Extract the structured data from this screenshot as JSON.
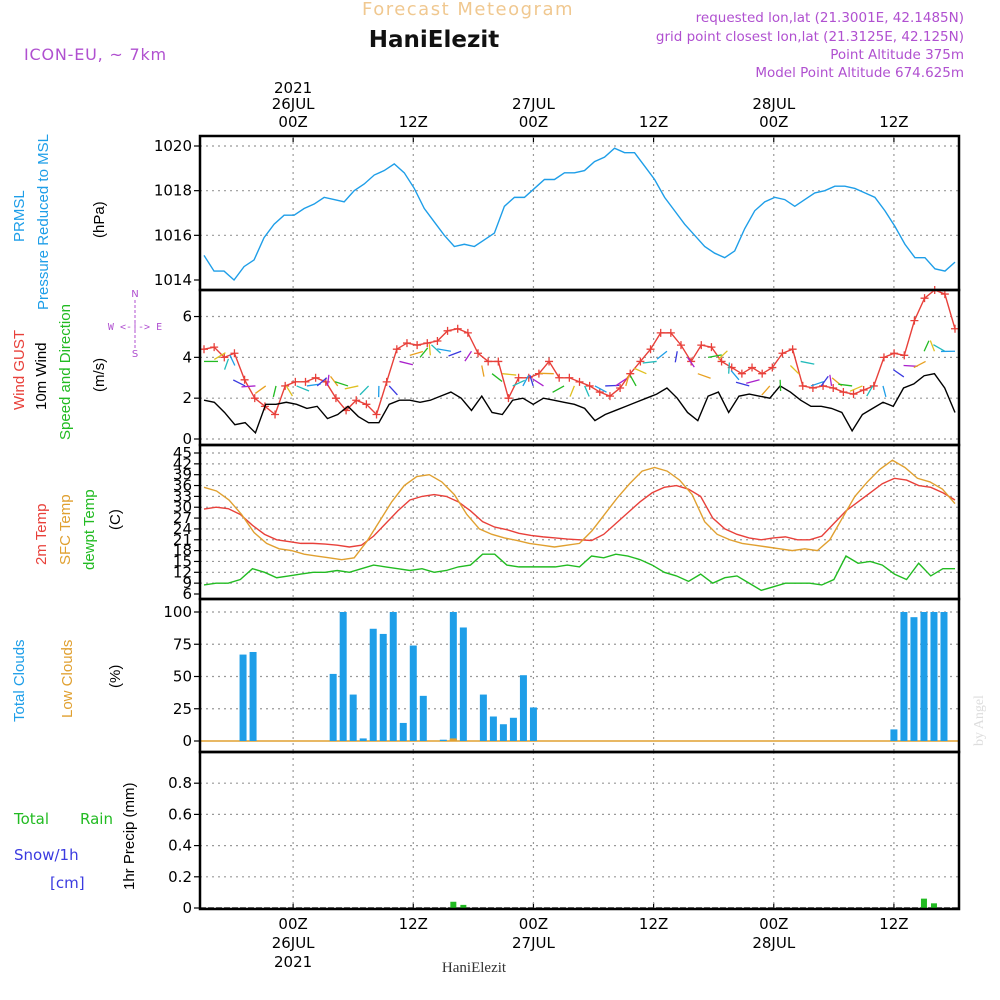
{
  "header": {
    "title_faint": "Forecast Meteogram",
    "station": "HaniElezit",
    "model": "ICON-EU, ~ 7km",
    "requested": "requested lon,lat (21.3001E, 42.1485N)",
    "grid_point": "grid point closest lon,lat (21.3125E, 42.125N)",
    "point_alt": "Point Altitude 375m",
    "model_alt": "Model Point Altitude 674.625m",
    "watermark": "by Angel",
    "footer": "HaniElezit"
  },
  "colors": {
    "pressure": "#1e9ee8",
    "gust": "#e8403a",
    "wind": "#000000",
    "temp": "#e8403a",
    "sfc": "#e0a030",
    "dewpt": "#22bb22",
    "clouds": "#1e9ee8",
    "lowclouds": "#e0a030",
    "rain": "#22bb22",
    "snow": "#3a3ae0",
    "header_violet": "#b050d0",
    "header_faint": "#f0c890"
  },
  "top_axis": [
    {
      "line1": "2021",
      "line2": "26JUL",
      "line3": "00Z",
      "h": 9
    },
    {
      "line1": "",
      "line2": "",
      "line3": "12Z",
      "h": 21
    },
    {
      "line1": "",
      "line2": "27JUL",
      "line3": "00Z",
      "h": 33
    },
    {
      "line1": "",
      "line2": "",
      "line3": "12Z",
      "h": 45
    },
    {
      "line1": "",
      "line2": "28JUL",
      "line3": "00Z",
      "h": 57
    },
    {
      "line1": "",
      "line2": "",
      "line3": "12Z",
      "h": 69
    }
  ],
  "bottom_axis": [
    {
      "line1": "00Z",
      "line2": "26JUL",
      "line3": "2021",
      "h": 9
    },
    {
      "line1": "12Z",
      "line2": "",
      "line3": "",
      "h": 21
    },
    {
      "line1": "00Z",
      "line2": "27JUL",
      "line3": "",
      "h": 33
    },
    {
      "line1": "12Z",
      "line2": "",
      "line3": "",
      "h": 45
    },
    {
      "line1": "00Z",
      "line2": "28JUL",
      "line3": "",
      "h": 57
    },
    {
      "line1": "12Z",
      "line2": "",
      "line3": "",
      "h": 69
    }
  ],
  "panel_labels": {
    "pressure": {
      "l1": "PRMSL",
      "l2": "Pressure Reduced to MSL",
      "unit": "(hPa)"
    },
    "wind": {
      "l1": "Wind GUST",
      "l2": "10m Wind",
      "l3": "Speed and Direction",
      "unit": "(m/s)",
      "compass": "W <-|-> E",
      "compass_n": "N",
      "compass_s": "S"
    },
    "temp": {
      "l1": "2m Temp",
      "l2": "SFC Temp",
      "l3": "dewpt Temp",
      "unit": "(C)"
    },
    "clouds": {
      "l1": "Total Clouds",
      "l2": "Low Clouds",
      "unit": "(%)"
    },
    "precip": {
      "l1": "Total",
      "l1b": "Rain",
      "l2": "Snow/1h",
      "l3": "[cm]",
      "unit": "1hr Precip (mm)"
    }
  },
  "chart_data": [
    {
      "type": "line",
      "name": "pressure",
      "xunit": "hours since 25JUL 15Z",
      "ylim": [
        1014,
        1020
      ],
      "yticks": [
        1014,
        1016,
        1018,
        1020
      ],
      "x": [
        0,
        1,
        2,
        3,
        4,
        5,
        6,
        7,
        8,
        9,
        10,
        11,
        12,
        13,
        14,
        15,
        16,
        17,
        18,
        19,
        20,
        21,
        22,
        23,
        24,
        25,
        26,
        27,
        28,
        29,
        30,
        31,
        32,
        33,
        34,
        35,
        36,
        37,
        38,
        39,
        40,
        41,
        42,
        43,
        44,
        45,
        46,
        47,
        48,
        49,
        50,
        51,
        52,
        53,
        54,
        55,
        56,
        57,
        58,
        59,
        60,
        61,
        62,
        63,
        64,
        65,
        66,
        67,
        68,
        69,
        70,
        71,
        72,
        73,
        74,
        75
      ],
      "series": [
        {
          "name": "PRMSL",
          "values": [
            1015.1,
            1014.4,
            1014.4,
            1014.0,
            1014.6,
            1014.9,
            1015.9,
            1016.5,
            1016.9,
            1016.9,
            1017.2,
            1017.4,
            1017.7,
            1017.6,
            1017.5,
            1018.0,
            1018.3,
            1018.7,
            1018.9,
            1019.2,
            1018.8,
            1018.1,
            1017.2,
            1016.6,
            1016.0,
            1015.5,
            1015.6,
            1015.5,
            1015.8,
            1016.1,
            1017.3,
            1017.7,
            1017.7,
            1018.1,
            1018.5,
            1018.5,
            1018.8,
            1018.8,
            1018.9,
            1019.3,
            1019.5,
            1019.9,
            1019.7,
            1019.7,
            1019.1,
            1018.5,
            1017.7,
            1017.1,
            1016.5,
            1016.0,
            1015.5,
            1015.2,
            1015.0,
            1015.3,
            1016.3,
            1017.1,
            1017.5,
            1017.7,
            1017.6,
            1017.3,
            1017.6,
            1017.9,
            1018.0,
            1018.2,
            1018.2,
            1018.1,
            1017.9,
            1017.7,
            1017.1,
            1016.4,
            1015.6,
            1015.0,
            1015.0,
            1014.5,
            1014.4,
            1014.8
          ]
        }
      ]
    },
    {
      "type": "line",
      "name": "wind",
      "ylim": [
        0,
        7.3
      ],
      "yticks": [
        0,
        2,
        4,
        6
      ],
      "series": [
        {
          "name": "Wind GUST",
          "values": [
            4.4,
            4.5,
            4.0,
            4.2,
            2.9,
            2.0,
            1.6,
            1.2,
            2.6,
            2.8,
            2.8,
            3.0,
            2.8,
            2.0,
            1.4,
            1.9,
            1.7,
            1.2,
            2.8,
            4.4,
            4.7,
            4.6,
            4.7,
            4.8,
            5.3,
            5.4,
            5.2,
            4.2,
            3.8,
            3.8,
            2.0,
            3.0,
            3.0,
            3.2,
            3.8,
            3.0,
            3.0,
            2.8,
            2.6,
            2.3,
            2.1,
            2.5,
            3.2,
            3.8,
            4.4,
            5.2,
            5.2,
            4.6,
            3.8,
            4.6,
            4.5,
            3.8,
            3.5,
            3.2,
            3.5,
            3.2,
            3.5,
            4.2,
            4.4,
            2.6,
            2.5,
            2.6,
            2.5,
            2.3,
            2.2,
            2.4,
            2.6,
            4.0,
            4.2,
            4.1,
            5.8,
            6.9,
            7.3,
            7.1,
            5.4
          ]
        },
        {
          "name": "10m Wind",
          "values": [
            1.9,
            1.8,
            1.3,
            0.7,
            0.8,
            0.3,
            1.7,
            1.7,
            1.8,
            1.7,
            1.5,
            1.6,
            1.0,
            1.2,
            1.6,
            1.1,
            0.8,
            0.8,
            1.7,
            1.9,
            1.9,
            1.8,
            1.9,
            2.1,
            2.3,
            2.0,
            1.4,
            2.1,
            1.3,
            1.2,
            1.9,
            2.0,
            1.7,
            2.0,
            1.9,
            1.8,
            1.7,
            1.5,
            0.9,
            1.2,
            1.4,
            1.6,
            1.8,
            2.0,
            2.2,
            2.5,
            2.0,
            1.3,
            0.9,
            2.1,
            2.3,
            1.3,
            2.1,
            2.2,
            2.1,
            2.0,
            2.6,
            2.3,
            1.9,
            1.6,
            1.6,
            1.5,
            1.3,
            0.4,
            1.2,
            1.5,
            1.8,
            1.6,
            2.5,
            2.7,
            3.1,
            3.2,
            2.5,
            1.3
          ]
        }
      ]
    },
    {
      "type": "line",
      "name": "temperature",
      "ylim": [
        6,
        45
      ],
      "yticks": [
        6,
        9,
        12,
        15,
        18,
        21,
        24,
        27,
        30,
        33,
        36,
        39,
        42,
        45
      ],
      "series": [
        {
          "name": "2m Temp",
          "values": [
            29.5,
            30.0,
            29.6,
            28.0,
            25.0,
            22.5,
            21.0,
            20.5,
            20.0,
            20.0,
            19.8,
            19.5,
            19.0,
            19.5,
            22.0,
            25.5,
            29.0,
            32.0,
            33.0,
            33.5,
            33.0,
            31.5,
            29.0,
            26.0,
            24.5,
            23.8,
            22.8,
            22.2,
            21.8,
            21.5,
            21.2,
            21.0,
            20.8,
            22.5,
            25.5,
            28.5,
            31.5,
            34.0,
            35.5,
            36.0,
            35.0,
            33.0,
            27.0,
            24.0,
            22.5,
            21.5,
            21.0,
            21.5,
            21.8,
            21.0,
            21.0,
            22.0,
            25.5,
            29.0,
            31.5,
            34.0,
            36.5,
            38.0,
            37.5,
            36.0,
            35.5,
            34.0,
            32.0
          ]
        },
        {
          "name": "SFC Temp",
          "values": [
            35.5,
            34.5,
            32.0,
            28.0,
            23.0,
            20.0,
            18.5,
            18.0,
            17.0,
            16.5,
            16.0,
            15.5,
            16.0,
            20.5,
            26.0,
            31.5,
            36.0,
            38.5,
            39.0,
            37.0,
            33.5,
            28.0,
            24.0,
            22.5,
            21.5,
            20.8,
            20.0,
            19.5,
            19.0,
            19.5,
            20.0,
            23.5,
            28.0,
            32.5,
            36.5,
            40.0,
            41.0,
            40.0,
            37.5,
            33.5,
            26.0,
            22.5,
            21.0,
            20.0,
            19.5,
            19.0,
            18.5,
            18.0,
            18.5,
            18.0,
            21.0,
            27.0,
            33.0,
            37.0,
            40.5,
            43.0,
            41.0,
            38.0,
            37.0,
            35.0,
            31.0
          ]
        },
        {
          "name": "dewpt Temp",
          "values": [
            8.5,
            9.0,
            9.0,
            10.0,
            13.0,
            12.0,
            10.5,
            11.0,
            11.5,
            12.0,
            12.0,
            12.5,
            12.0,
            13.0,
            14.0,
            13.5,
            13.0,
            12.5,
            13.0,
            12.0,
            12.5,
            13.5,
            14.0,
            17.0,
            17.0,
            14.0,
            13.5,
            13.5,
            13.5,
            13.5,
            14.0,
            13.5,
            16.5,
            16.0,
            17.0,
            16.5,
            15.5,
            14.0,
            12.0,
            11.0,
            9.5,
            11.5,
            9.0,
            10.5,
            11.0,
            9.0,
            7.0,
            8.0,
            9.0,
            9.0,
            9.0,
            8.5,
            10.0,
            16.5,
            14.5,
            15.0,
            14.0,
            11.5,
            10.0,
            14.5,
            11.0,
            13.0,
            13.0
          ]
        }
      ]
    },
    {
      "type": "bar",
      "name": "clouds",
      "ylim": [
        0,
        100
      ],
      "yticks": [
        0,
        25,
        50,
        75,
        100
      ],
      "series": [
        {
          "name": "Total Clouds",
          "bars": [
            [
              4,
              67
            ],
            [
              5,
              69
            ],
            [
              13,
              52
            ],
            [
              14,
              100
            ],
            [
              15,
              36
            ],
            [
              16,
              2
            ],
            [
              17,
              87
            ],
            [
              18,
              83
            ],
            [
              19,
              100
            ],
            [
              20,
              14
            ],
            [
              21,
              74
            ],
            [
              22,
              35
            ],
            [
              24,
              1
            ],
            [
              25,
              100
            ],
            [
              26,
              88
            ],
            [
              28,
              36
            ],
            [
              29,
              19
            ],
            [
              30,
              13
            ],
            [
              31,
              18
            ],
            [
              32,
              51
            ],
            [
              33,
              26
            ],
            [
              69,
              9
            ],
            [
              70,
              100
            ],
            [
              71,
              96
            ],
            [
              72,
              100
            ],
            [
              73,
              100
            ],
            [
              74,
              100
            ]
          ]
        },
        {
          "name": "Low Clouds",
          "bars": [
            [
              25,
              2
            ]
          ]
        }
      ]
    },
    {
      "type": "bar",
      "name": "precipitation",
      "ylim": [
        0,
        1.0
      ],
      "yticks": [
        0,
        0.2,
        0.4,
        0.6,
        0.8
      ],
      "series": [
        {
          "name": "Total Rain",
          "bars": [
            [
              25,
              0.04
            ],
            [
              26,
              0.02
            ],
            [
              72,
              0.06
            ],
            [
              73,
              0.03
            ]
          ]
        }
      ]
    }
  ]
}
